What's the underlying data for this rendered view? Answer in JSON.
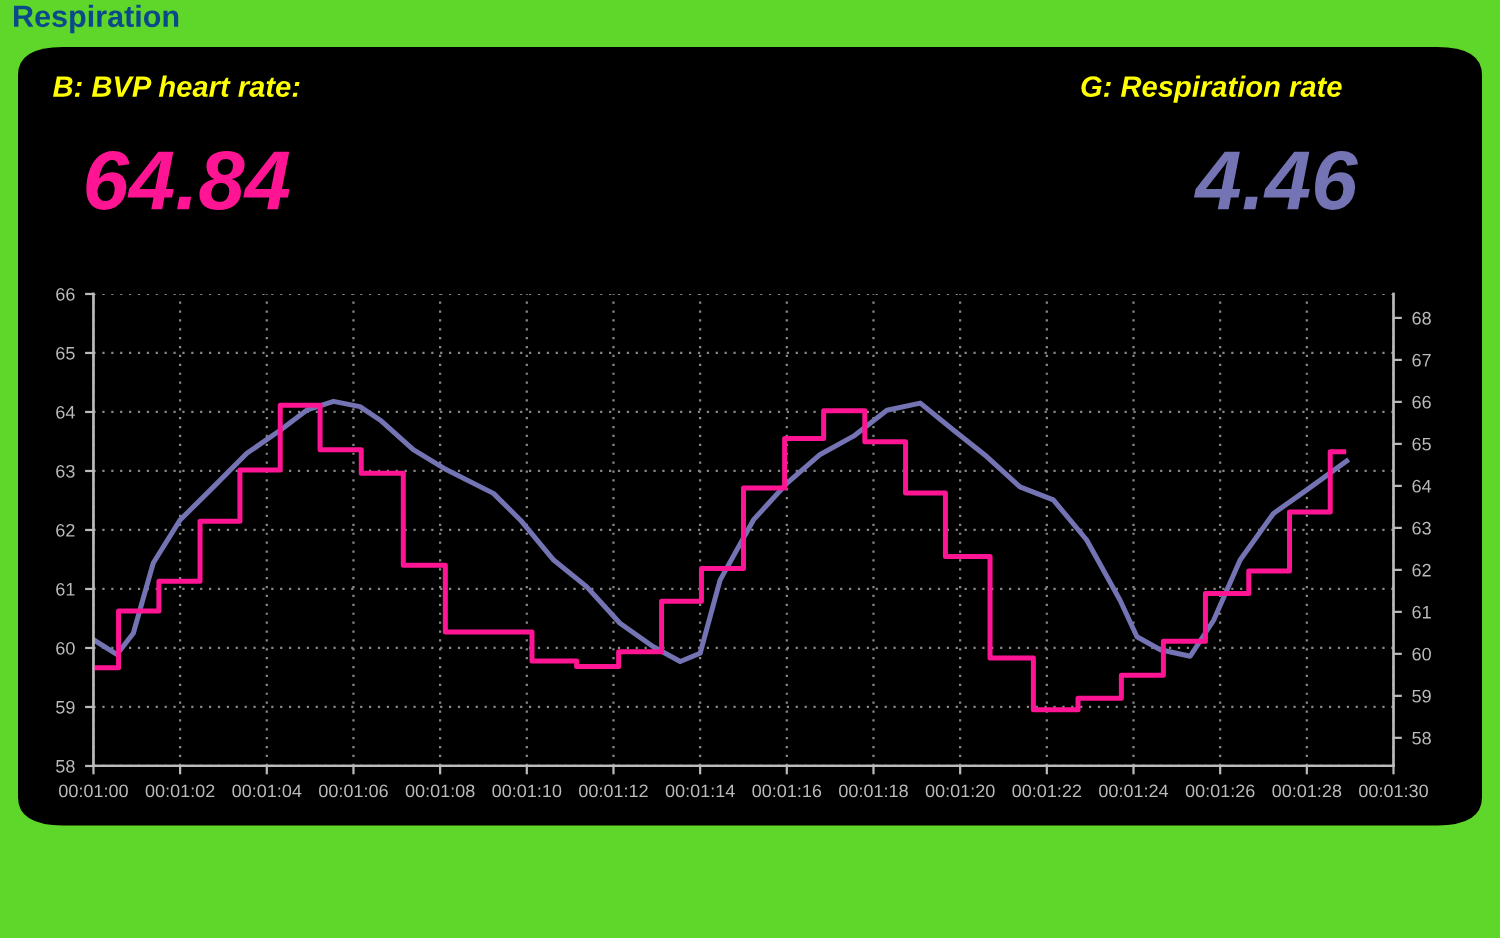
{
  "chart_data": {
    "type": "line",
    "title": "Respiration",
    "annotations": [
      "B: BVP heart rate:",
      "64.84",
      "G: Respiration rate",
      "4.46"
    ],
    "series": [
      {
        "type": "step",
        "color": "#ff1493",
        "axis": "y2",
        "x": [
          60.0,
          60.58,
          61.51,
          62.46,
          63.38,
          64.31,
          65.23,
          66.18,
          67.15,
          68.12,
          70.12,
          71.15,
          72.12,
          73.11,
          74.03,
          75.0,
          75.95,
          76.85,
          77.8,
          78.74,
          79.66,
          80.69,
          81.69,
          82.72,
          83.72,
          84.69,
          85.66,
          86.66,
          87.6,
          88.54,
          88.85
        ],
        "values": [
          59.67,
          61.02,
          61.73,
          63.16,
          64.38,
          65.92,
          64.86,
          64.3,
          62.11,
          60.52,
          59.83,
          59.7,
          60.05,
          61.25,
          62.03,
          63.95,
          65.13,
          65.79,
          65.05,
          63.83,
          62.32,
          59.9,
          58.67,
          58.94,
          59.49,
          60.3,
          61.44,
          61.97,
          63.38,
          64.81,
          64.81
        ]
      },
      {
        "color": "#7474b4",
        "axis": "y",
        "x": [
          60.0,
          60.54,
          60.92,
          61.38,
          62.0,
          62.77,
          63.54,
          64.31,
          64.92,
          65.54,
          66.15,
          66.62,
          67.38,
          68.15,
          69.23,
          69.85,
          70.62,
          71.38,
          72.15,
          72.92,
          73.54,
          74.0,
          74.46,
          75.23,
          76.0,
          76.77,
          77.54,
          78.31,
          79.08,
          79.85,
          80.62,
          81.38,
          82.15,
          82.92,
          83.69,
          84.08,
          84.62,
          85.31,
          85.85,
          86.46,
          87.23,
          88.0,
          88.92
        ],
        "values": [
          60.14,
          59.89,
          60.25,
          61.44,
          62.17,
          62.73,
          63.3,
          63.69,
          64.03,
          64.18,
          64.09,
          63.86,
          63.36,
          63.02,
          62.62,
          62.17,
          61.49,
          61.04,
          60.42,
          60.02,
          59.77,
          59.91,
          61.15,
          62.17,
          62.79,
          63.28,
          63.59,
          64.03,
          64.15,
          63.69,
          63.24,
          62.73,
          62.51,
          61.83,
          60.81,
          60.19,
          59.97,
          59.86,
          60.47,
          61.49,
          62.28,
          62.68,
          63.17
        ]
      }
    ],
    "xlim": [
      60,
      90
    ],
    "xticks": [
      {
        "value": 60,
        "label": "00:01:00"
      },
      {
        "value": 62,
        "label": "00:01:02"
      },
      {
        "value": 64,
        "label": "00:01:04"
      },
      {
        "value": 66,
        "label": "00:01:06"
      },
      {
        "value": 68,
        "label": "00:01:08"
      },
      {
        "value": 70,
        "label": "00:01:10"
      },
      {
        "value": 72,
        "label": "00:01:12"
      },
      {
        "value": 74,
        "label": "00:01:14"
      },
      {
        "value": 76,
        "label": "00:01:16"
      },
      {
        "value": 78,
        "label": "00:01:18"
      },
      {
        "value": 80,
        "label": "00:01:20"
      },
      {
        "value": 82,
        "label": "00:01:22"
      },
      {
        "value": 84,
        "label": "00:01:24"
      },
      {
        "value": 86,
        "label": "00:01:26"
      },
      {
        "value": 88,
        "label": "00:01:28"
      },
      {
        "value": 90,
        "label": "00:01:30"
      }
    ],
    "ylim": [
      58,
      66
    ],
    "yticks": [
      58,
      59,
      60,
      61,
      62,
      63,
      64,
      65,
      66
    ],
    "y2lim": [
      57.33,
      68.57
    ],
    "y2ticks": [
      58,
      59,
      60,
      61,
      62,
      63,
      64,
      65,
      66,
      67,
      68
    ],
    "grid": true,
    "line_style": "solid",
    "marker": "none"
  }
}
